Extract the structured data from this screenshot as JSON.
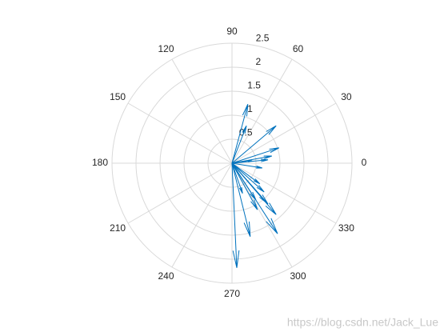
{
  "chart_data": {
    "type": "compass",
    "u": [
      0.33,
      0.92,
      0.98,
      0.3,
      0.83,
      0.75,
      0.63,
      0.1,
      0.38,
      0.95,
      0.92,
      0.53,
      0.75,
      0.67,
      0.58,
      0.5,
      0.22,
      0.42
    ],
    "v": [
      1.23,
      0.78,
      0.32,
      0.78,
      0.15,
      0.07,
      -0.1,
      -2.18,
      -1.53,
      -1.47,
      -1.07,
      -0.97,
      -0.85,
      -0.6,
      -0.43,
      -0.77,
      -0.63,
      0.05
    ],
    "color": "#0072bd",
    "rlim": [
      0,
      2.5
    ],
    "rticks": [
      0.5,
      1,
      1.5,
      2,
      2.5
    ],
    "thetaticks": [
      0,
      30,
      60,
      90,
      120,
      150,
      180,
      210,
      240,
      270,
      300,
      330
    ],
    "grid": true,
    "watermark": "https://blog.csdn.net/Jack_Lue"
  }
}
